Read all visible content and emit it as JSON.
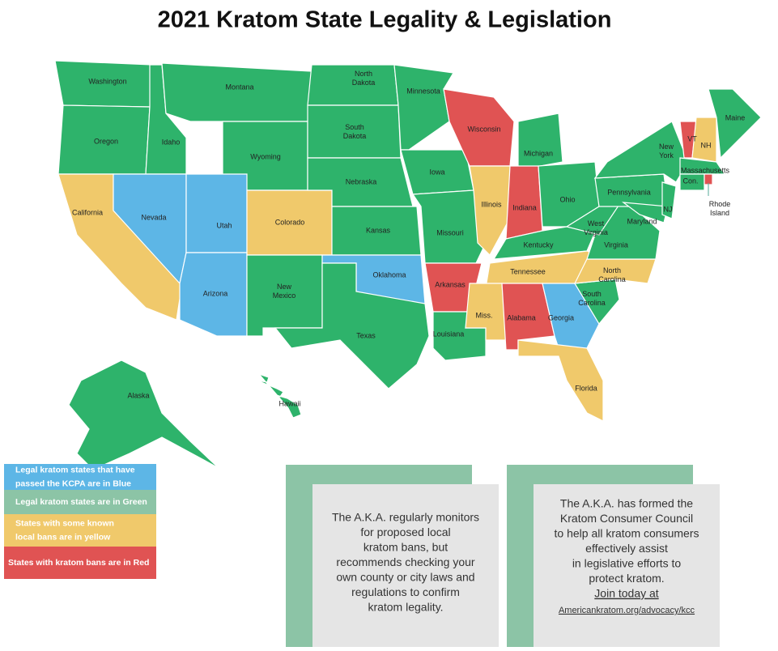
{
  "title": "2021 Kratom State Legality & Legislation",
  "states": [
    {
      "label": [
        "Washington"
      ],
      "color": "#2eb36b"
    },
    {
      "label": [
        "Oregon"
      ],
      "color": "#2eb36b"
    },
    {
      "label": [
        "California"
      ],
      "color": "#f0c96b"
    },
    {
      "label": [
        "Idaho"
      ],
      "color": "#2eb36b"
    },
    {
      "label": [
        "Nevada"
      ],
      "color": "#5db6e6"
    },
    {
      "label": [
        "Montana"
      ],
      "color": "#2eb36b"
    },
    {
      "label": [
        "Wyoming"
      ],
      "color": "#2eb36b"
    },
    {
      "label": [
        "Utah"
      ],
      "color": "#5db6e6"
    },
    {
      "label": [
        "Arizona"
      ],
      "color": "#5db6e6"
    },
    {
      "label": [
        "Colorado"
      ],
      "color": "#f0c96b"
    },
    {
      "label": [
        "New",
        "Mexico"
      ],
      "color": "#2eb36b"
    },
    {
      "label": [
        "North",
        "Dakota"
      ],
      "color": "#2eb36b"
    },
    {
      "label": [
        "South",
        "Dakota"
      ],
      "color": "#2eb36b"
    },
    {
      "label": [
        "Nebraska"
      ],
      "color": "#2eb36b"
    },
    {
      "label": [
        "Kansas"
      ],
      "color": "#2eb36b"
    },
    {
      "label": [
        "Oklahoma"
      ],
      "color": "#5db6e6"
    },
    {
      "label": [
        "Texas"
      ],
      "color": "#2eb36b"
    },
    {
      "label": [
        "Minnesota"
      ],
      "color": "#2eb36b"
    },
    {
      "label": [
        "Iowa"
      ],
      "color": "#2eb36b"
    },
    {
      "label": [
        "Missouri"
      ],
      "color": "#2eb36b"
    },
    {
      "label": [
        "Arkansas"
      ],
      "color": "#e05353"
    },
    {
      "label": [
        "Louisiana"
      ],
      "color": "#2eb36b"
    },
    {
      "label": [
        "Wisconsin"
      ],
      "color": "#e05353"
    },
    {
      "label": [
        "Illinois"
      ],
      "color": "#f0c96b"
    },
    {
      "label": [
        "Michigan"
      ],
      "color": "#2eb36b"
    },
    {
      "label": [
        "Indiana"
      ],
      "color": "#e05353"
    },
    {
      "label": [
        "Ohio"
      ],
      "color": "#2eb36b"
    },
    {
      "label": [
        "Kentucky"
      ],
      "color": "#2eb36b"
    },
    {
      "label": [
        "Tennessee"
      ],
      "color": "#f0c96b"
    },
    {
      "label": [
        "Miss."
      ],
      "color": "#f0c96b"
    },
    {
      "label": [
        "Alabama"
      ],
      "color": "#e05353"
    },
    {
      "label": [
        "Georgia"
      ],
      "color": "#5db6e6"
    },
    {
      "label": [
        "Florida"
      ],
      "color": "#f0c96b"
    },
    {
      "label": [
        "South",
        "Carolina"
      ],
      "color": "#2eb36b"
    },
    {
      "label": [
        "North",
        "Carolina"
      ],
      "color": "#f0c96b"
    },
    {
      "label": [
        "Virginia"
      ],
      "color": "#2eb36b"
    },
    {
      "label": [
        "West",
        "Virginia"
      ],
      "color": "#2eb36b"
    },
    {
      "label": [
        "Pennsylvania"
      ],
      "color": "#2eb36b"
    },
    {
      "label": [
        "New",
        "York"
      ],
      "color": "#2eb36b"
    },
    {
      "label": [
        "Maryland"
      ],
      "color": "#2eb36b"
    },
    {
      "label": [
        "NJ"
      ],
      "color": "#2eb36b"
    },
    {
      "label": [
        "VT"
      ],
      "color": "#e05353"
    },
    {
      "label": [
        "NH"
      ],
      "color": "#f0c96b"
    },
    {
      "label": [
        "Maine"
      ],
      "color": "#2eb36b"
    },
    {
      "label": [
        "Massachusetts"
      ],
      "color": "#2eb36b"
    },
    {
      "label": [
        "Con."
      ],
      "color": "#2eb36b"
    },
    {
      "label": [
        "Rhode",
        "Island"
      ],
      "color": "#e05353"
    },
    {
      "label": [
        "Alaska"
      ],
      "color": "#2eb36b"
    },
    {
      "label": [
        "Hawaii"
      ],
      "color": "#2eb36b"
    }
  ],
  "legend": [
    {
      "lines": [
        "Legal kratom states that have",
        "passed the KCPA are in Blue"
      ],
      "color": "#5db6e6"
    },
    {
      "lines": [
        "Legal kratom states are in Green"
      ],
      "color": "#8cc4a6"
    },
    {
      "lines": [
        "States with some known",
        "local bans are in yellow"
      ],
      "color": "#f0c96b"
    },
    {
      "lines": [
        "States with kratom bans are in Red"
      ],
      "color": "#e05353"
    }
  ],
  "notes": [
    {
      "lines": [
        "The A.K.A. regularly monitors",
        "for proposed local",
        "kratom bans, but",
        "recommends checking your",
        "own county or city laws and",
        "regulations to confirm",
        "kratom legality."
      ]
    },
    {
      "lines": [
        "The A.K.A. has formed the",
        "Kratom Consumer Council",
        "to help all kratom consumers",
        "effectively assist",
        "in legislative efforts to",
        "protect kratom."
      ],
      "link": "Join today at",
      "url": "Americankratom.org/advocacy/kcc"
    }
  ]
}
